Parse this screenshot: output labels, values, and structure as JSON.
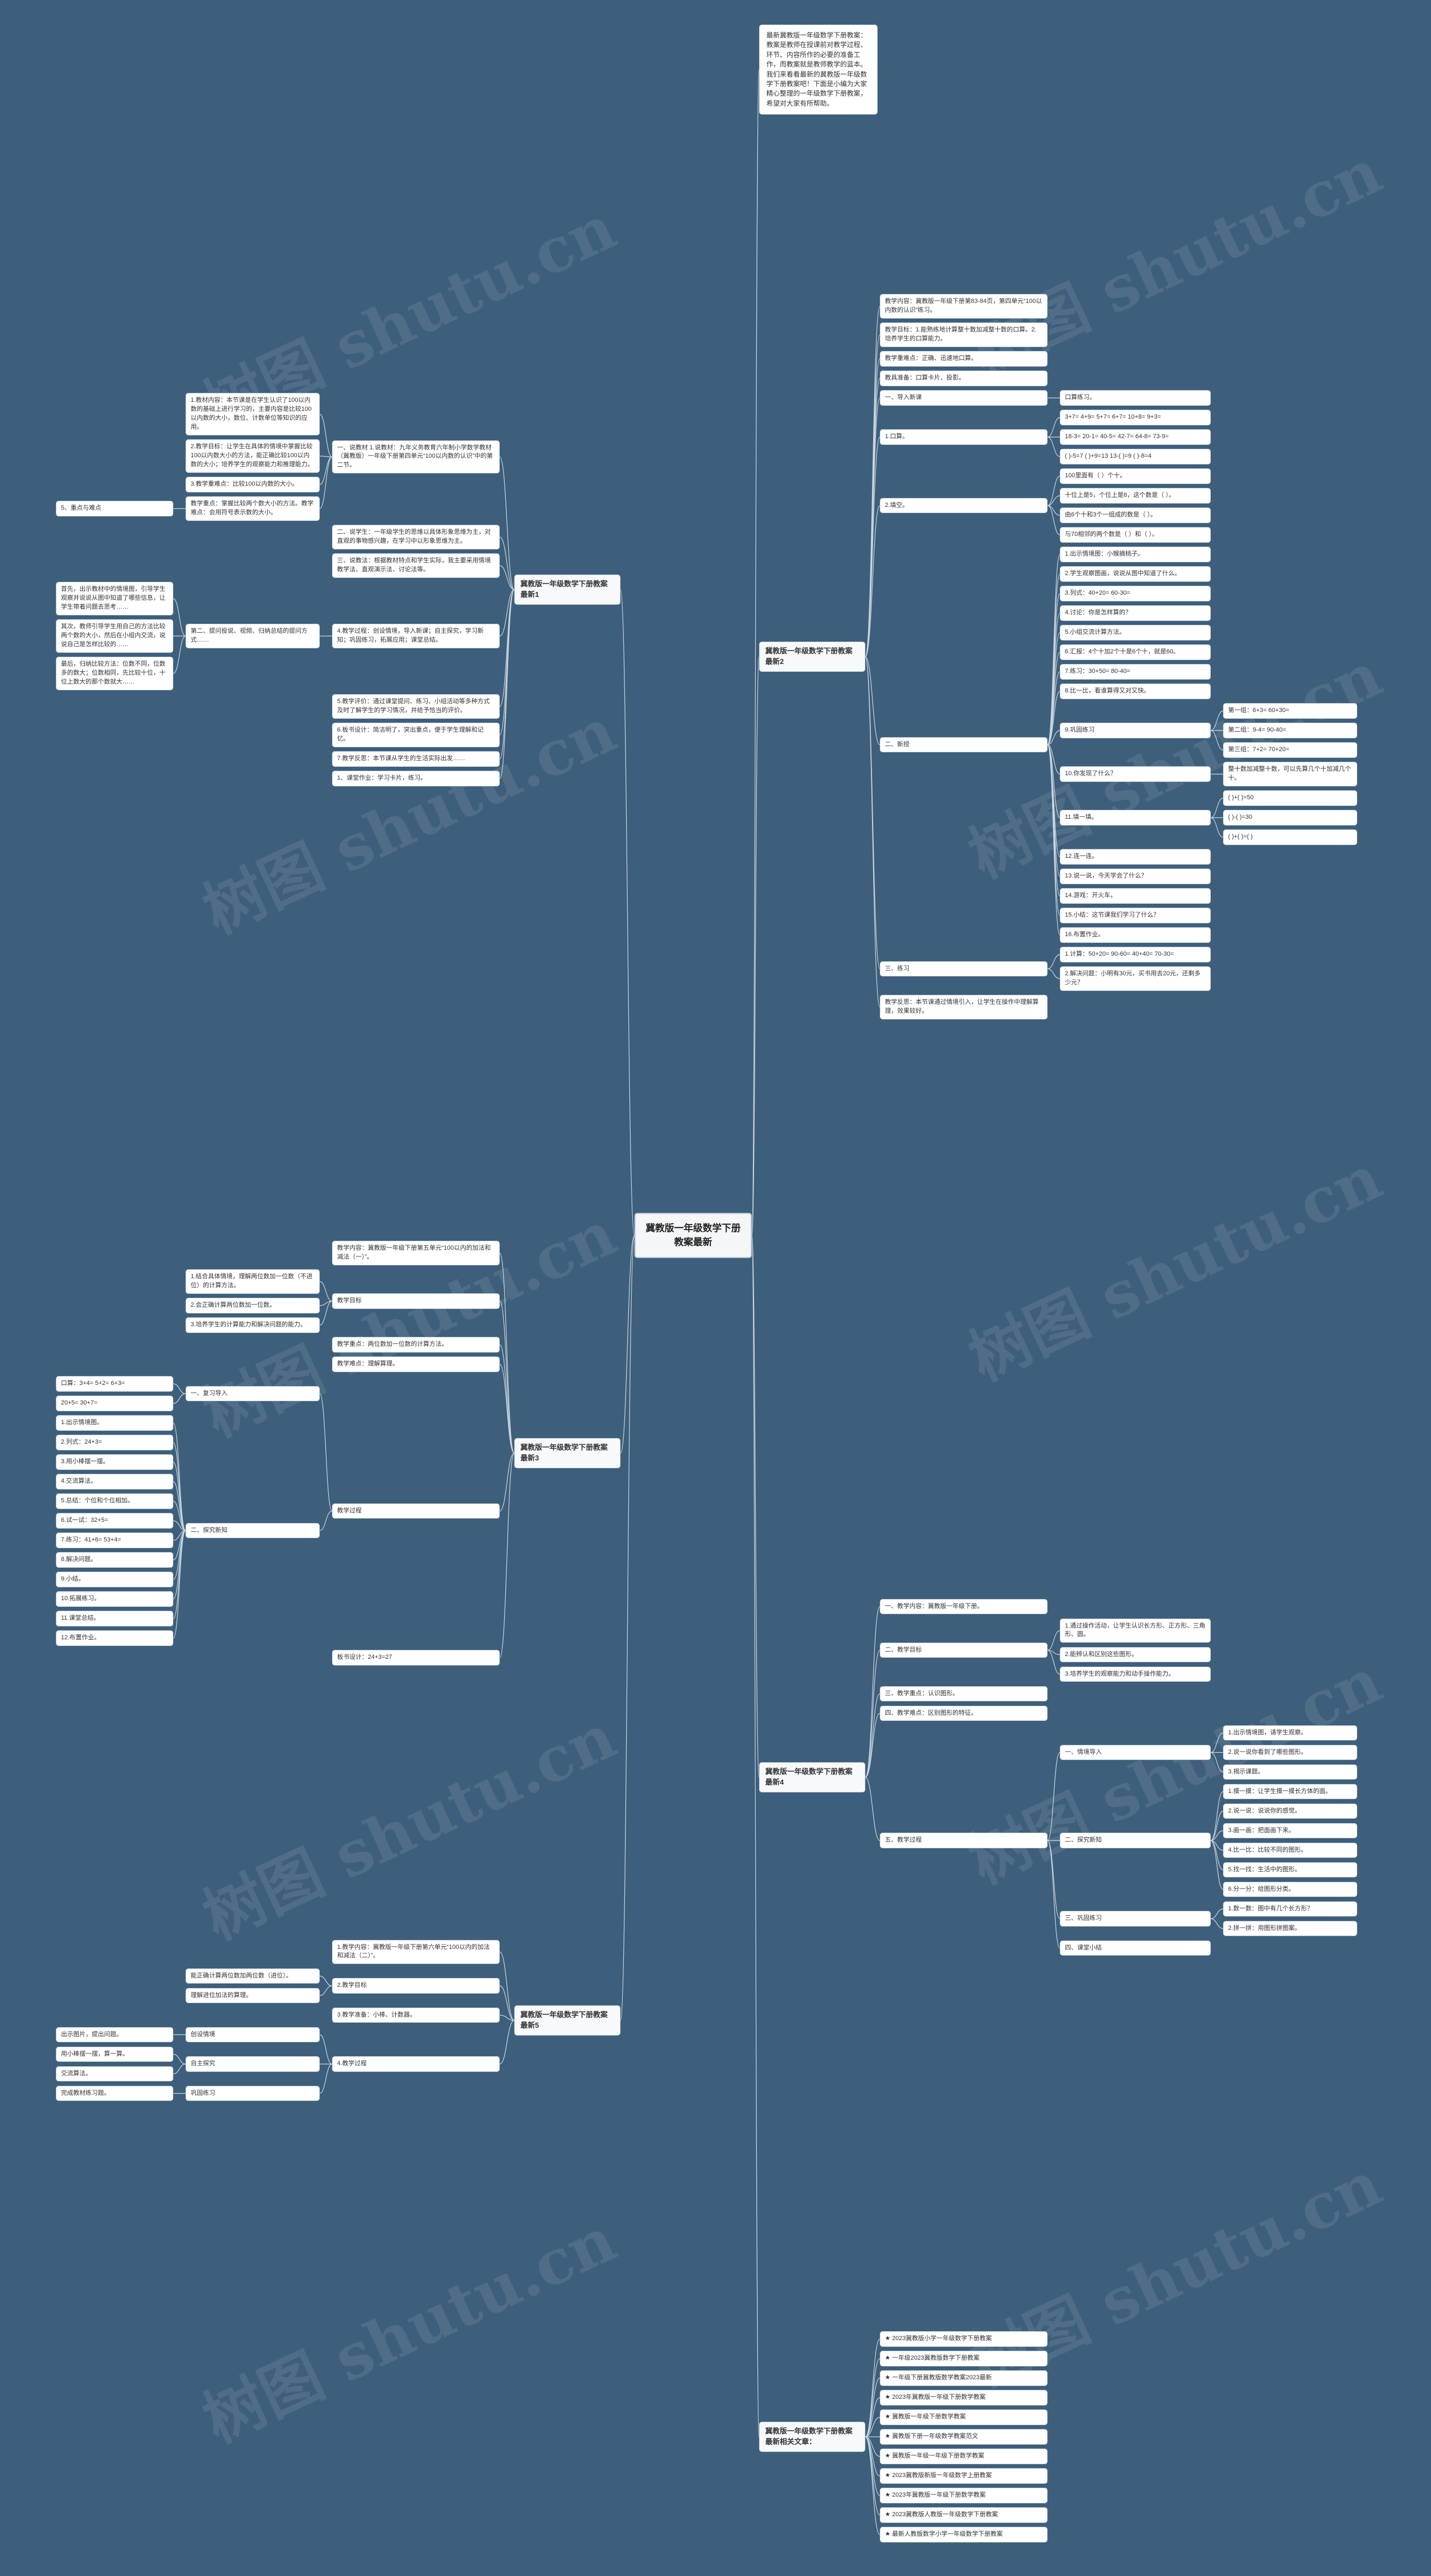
{
  "watermark": "树图 shutu.cn",
  "mindmap": {
    "root": "冀教版一年级数学下册教案最新",
    "intro": "最新冀教版一年级数学下册教案：教案是教师在授课前对教学过程、环节、内容所作的必要的准备工作，而教案就是教师教学的蓝本。我们来看看最新的冀教版一年级数学下册教案吧！下面是小编为大家精心整理的一年级数学下册教案，希望对大家有所帮助。",
    "branches": [
      {
        "id": "b1",
        "label": "冀教版一年级数学下册教案最新1",
        "children": [
          {
            "t": "一、说教材 1.说教材：九年义务教育六年制小学数学教材（冀教版）一年级下册第四单元“100以内数的认识”中的第二节。",
            "sub": [
              {
                "t": "1.教材内容：本节课是在学生认识了100以内数的基础上进行学习的，主要内容是比较100以内数的大小，数位、计数单位等知识的应用。"
              },
              {
                "t": "2.教学目标：让学生在具体的情境中掌握比较100以内数大小的方法，能正确比较100以内数的大小；培养学生的观察能力和推理能力。"
              },
              {
                "t": "3.教学重难点：比较100以内数的大小。"
              },
              {
                "t": "教学重点：掌握比较两个数大小的方法。教学难点：会用符号表示数的大小。",
                "sub": [
                  {
                    "t": "5、重点与难点"
                  }
                ]
              }
            ]
          },
          {
            "t": "二、说学生：一年级学生的思维以具体形象思维为主，对直观的事物感兴趣，在学习中以形象思维为主。"
          },
          {
            "t": "三、说教法：根据教材特点和学生实际，我主要采用情境教学法、直观演示法、讨论法等。"
          },
          {
            "t": "4.教学过程：创设情境，导入新课；自主探究，学习新知；巩固练习，拓展应用；课堂总结。",
            "sub": [
              {
                "t": "第二、提问投说、视频、归纳总结的提问方式……",
                "sub": [
                  {
                    "t": "首先，出示教材中的情境图，引导学生观察并说说从图中知道了哪些信息，让学生带着问题去思考……"
                  },
                  {
                    "t": "其次，教师引导学生用自己的方法比较两个数的大小，然后在小组内交流，说说自己是怎样比较的……"
                  },
                  {
                    "t": "最后，归纳比较方法：位数不同，位数多的数大；位数相同，先比较十位，十位上数大的那个数就大……"
                  }
                ]
              }
            ]
          },
          {
            "t": "5.教学评价：通过课堂提问、练习、小组活动等多种方式及时了解学生的学习情况，并给予恰当的评价。"
          },
          {
            "t": "6.板书设计：简洁明了，突出重点，便于学生理解和记忆。"
          },
          {
            "t": "7.教学反思：本节课从学生的生活实际出发……"
          },
          {
            "t": "1、课堂作业：学习卡片，练习。"
          }
        ]
      },
      {
        "id": "b2",
        "label": "冀教版一年级数学下册教案最新2",
        "children": [
          {
            "t": "教学内容：冀教版一年级下册第83-84页，第四单元“100以内数的认识”练习。"
          },
          {
            "t": "教学目标：1.能熟练地计算整十数加减整十数的口算。2.培养学生的口算能力。"
          },
          {
            "t": "教学重难点：正确、迅速地口算。"
          },
          {
            "t": "教具准备：口算卡片、投影。"
          },
          {
            "t": "一、导入新课",
            "sub": [
              {
                "t": "口算练习。"
              }
            ]
          },
          {
            "t": "1.口算。",
            "sub": [
              {
                "t": "3+7=  4+9=  5+7=  6+7=  10+8=  9+3="
              },
              {
                "t": "18-3=  20-1=  40-5=  42-7=  64-8=  73-9="
              },
              {
                "t": "( )-5=7   ( )+9=13   13-( )=9   ( )-8=4"
              }
            ]
          },
          {
            "t": "2.填空。",
            "sub": [
              {
                "t": "100里面有（ ）个十。"
              },
              {
                "t": "十位上是5，个位上是8，这个数是（ ）。"
              },
              {
                "t": "由6个十和3个一组成的数是（ ）。"
              },
              {
                "t": "与70相邻的两个数是（ ）和（ ）。"
              }
            ]
          },
          {
            "t": "二、新授",
            "sub": [
              {
                "t": "1.出示情境图：小猴摘桃子。"
              },
              {
                "t": "2.学生观察图画，说说从图中知道了什么。"
              },
              {
                "t": "3.列式：40+20=  60-30="
              },
              {
                "t": "4.讨论：你是怎样算的？"
              },
              {
                "t": "5.小组交流计算方法。"
              },
              {
                "t": "6.汇报：4个十加2个十是6个十，就是60。"
              },
              {
                "t": "7.练习：30+50=  80-40="
              },
              {
                "t": "8.比一比，看谁算得又对又快。"
              },
              {
                "t": "9.巩固练习",
                "sub": [
                  {
                    "t": "第一组：6+3=  60+30="
                  },
                  {
                    "t": "第二组：9-4=  90-40="
                  },
                  {
                    "t": "第三组：7+2=  70+20="
                  }
                ]
              },
              {
                "t": "10.你发现了什么？",
                "sub": [
                  {
                    "t": "整十数加减整十数，可以先算几个十加减几个十。"
                  }
                ]
              },
              {
                "t": "11.填一填。",
                "sub": [
                  {
                    "t": "( )+( )=50"
                  },
                  {
                    "t": "( )-( )=30"
                  },
                  {
                    "t": "( )+( )=( )"
                  }
                ]
              },
              {
                "t": "12.连一连。"
              },
              {
                "t": "13.说一说，今天学会了什么？"
              },
              {
                "t": "14.游戏：开火车。"
              },
              {
                "t": "15.小结：这节课我们学习了什么？"
              },
              {
                "t": "16.布置作业。"
              }
            ]
          },
          {
            "t": "三、练习",
            "sub": [
              {
                "t": "1.计算：50+20=  90-60=  40+40=  70-30="
              },
              {
                "t": "2.解决问题：小明有30元，买书用去20元，还剩多少元？"
              }
            ]
          },
          {
            "t": "教学反思：本节课通过情境引入，让学生在操作中理解算理，效果较好。"
          }
        ]
      },
      {
        "id": "b3",
        "label": "冀教版一年级数学下册教案最新3",
        "children": [
          {
            "t": "教学内容：冀教版一年级下册第五单元“100以内的加法和减法（一）”。"
          },
          {
            "t": "教学目标",
            "sub": [
              {
                "t": "1.结合具体情境，理解两位数加一位数（不进位）的计算方法。"
              },
              {
                "t": "2.会正确计算两位数加一位数。"
              },
              {
                "t": "3.培养学生的计算能力和解决问题的能力。"
              }
            ]
          },
          {
            "t": "教学重点：两位数加一位数的计算方法。"
          },
          {
            "t": "教学难点：理解算理。"
          },
          {
            "t": "教学过程",
            "sub": [
              {
                "t": "一、复习导入",
                "sub": [
                  {
                    "t": "口算：3+4=  5+2=  6+3="
                  },
                  {
                    "t": "20+5=  30+7="
                  }
                ]
              },
              {
                "t": "二、探究新知",
                "sub": [
                  {
                    "t": "1.出示情境图。"
                  },
                  {
                    "t": "2.列式：24+3="
                  },
                  {
                    "t": "3.用小棒摆一摆。"
                  },
                  {
                    "t": "4.交流算法。"
                  },
                  {
                    "t": "5.总结：个位和个位相加。"
                  },
                  {
                    "t": "6.试一试：32+5="
                  },
                  {
                    "t": "7.练习：41+6=  53+4="
                  },
                  {
                    "t": "8.解决问题。"
                  },
                  {
                    "t": "9.小结。"
                  },
                  {
                    "t": "10.拓展练习。"
                  },
                  {
                    "t": "11.课堂总结。"
                  },
                  {
                    "t": "12.布置作业。"
                  }
                ]
              }
            ]
          },
          {
            "t": "板书设计：24+3=27"
          }
        ]
      },
      {
        "id": "b4",
        "label": "冀教版一年级数学下册教案最新4",
        "children": [
          {
            "t": "一、教学内容：冀教版一年级下册。"
          },
          {
            "t": "二、教学目标",
            "sub": [
              {
                "t": "1.通过操作活动，让学生认识长方形、正方形、三角形、圆。"
              },
              {
                "t": "2.能辨认和区别这些图形。"
              },
              {
                "t": "3.培养学生的观察能力和动手操作能力。"
              }
            ]
          },
          {
            "t": "三、教学重点：认识图形。"
          },
          {
            "t": "四、教学难点：区别图形的特征。"
          },
          {
            "t": "五、教学过程",
            "sub": [
              {
                "t": "一、情境导入",
                "sub": [
                  {
                    "t": "1.出示情境图，请学生观察。"
                  },
                  {
                    "t": "2.说一说你看到了哪些图形。"
                  },
                  {
                    "t": "3.揭示课题。"
                  }
                ]
              },
              {
                "t": "二、探究新知",
                "sub": [
                  {
                    "t": "1.摸一摸：让学生摸一摸长方体的面。"
                  },
                  {
                    "t": "2.说一说：说说你的感觉。"
                  },
                  {
                    "t": "3.画一画：把面画下来。"
                  },
                  {
                    "t": "4.比一比：比较不同的图形。"
                  },
                  {
                    "t": "5.找一找：生活中的图形。"
                  },
                  {
                    "t": "6.分一分：给图形分类。"
                  }
                ]
              },
              {
                "t": "三、巩固练习",
                "sub": [
                  {
                    "t": "1.数一数：图中有几个长方形？"
                  },
                  {
                    "t": "2.拼一拼：用图形拼图案。"
                  }
                ]
              },
              {
                "t": "四、课堂小结"
              }
            ]
          }
        ]
      },
      {
        "id": "b5",
        "label": "冀教版一年级数学下册教案最新5",
        "children": [
          {
            "t": "1.教学内容：冀教版一年级下册第六单元“100以内的加法和减法（二）”。"
          },
          {
            "t": "2.教学目标",
            "sub": [
              {
                "t": "能正确计算两位数加两位数（进位）。"
              },
              {
                "t": "理解进位加法的算理。"
              }
            ]
          },
          {
            "t": "3.教学准备：小棒、计数器。"
          },
          {
            "t": "4.教学过程",
            "sub": [
              {
                "t": "创设情境",
                "sub": [
                  {
                    "t": "出示图片，提出问题。"
                  }
                ]
              },
              {
                "t": "自主探究",
                "sub": [
                  {
                    "t": "用小棒摆一摆，算一算。"
                  },
                  {
                    "t": "交流算法。"
                  }
                ]
              },
              {
                "t": "巩固练习",
                "sub": [
                  {
                    "t": "完成教材练习题。"
                  }
                ]
              }
            ]
          }
        ]
      },
      {
        "id": "b6",
        "label": "冀教版一年级数学下册教案最新相关文章：",
        "children": [
          {
            "t": "★ 2023冀教版小学一年级数学下册教案"
          },
          {
            "t": "★ 一年级2023冀教版数学下册教案"
          },
          {
            "t": "★ 一年级下册冀教版数学教案2023最新"
          },
          {
            "t": "★ 2023年冀教版一年级下册数学教案"
          },
          {
            "t": "★ 冀教版一年级下册数学教案"
          },
          {
            "t": "★ 冀教版下册一年级数学教案范文"
          },
          {
            "t": "★ 冀教版一年级一年级下册数学教案"
          },
          {
            "t": "★ 2023冀教版新版一年级数学上册教案"
          },
          {
            "t": "★ 2023年冀教版一年级下册数学教案"
          },
          {
            "t": "★ 2023冀教版人教版一年级数学下册教案"
          },
          {
            "t": "★ 最新人教版数学小学一年级数学下册教案"
          }
        ]
      }
    ]
  }
}
